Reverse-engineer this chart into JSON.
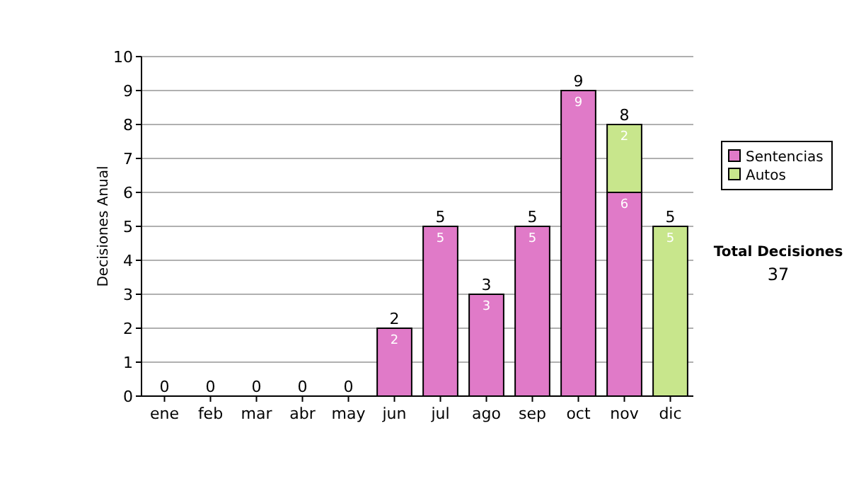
{
  "chart_data": {
    "type": "bar",
    "stacked": true,
    "ylabel": "Decisiones Anual",
    "categories": [
      "ene",
      "feb",
      "mar",
      "abr",
      "may",
      "jun",
      "jul",
      "ago",
      "sep",
      "oct",
      "nov",
      "dic"
    ],
    "series": [
      {
        "name": "Sentencias",
        "color": "#e07ac8",
        "values": [
          0,
          0,
          0,
          0,
          0,
          2,
          5,
          3,
          5,
          9,
          6,
          0
        ],
        "value_labels": [
          null,
          null,
          null,
          null,
          null,
          "2",
          "5",
          "3",
          "5",
          "9",
          "6",
          null
        ]
      },
      {
        "name": "Autos",
        "color": "#c8e68c",
        "values": [
          0,
          0,
          0,
          0,
          0,
          0,
          0,
          0,
          0,
          0,
          2,
          5
        ],
        "value_labels": [
          null,
          null,
          null,
          null,
          null,
          null,
          null,
          null,
          null,
          null,
          "2",
          "5"
        ]
      }
    ],
    "totals": [
      "0",
      "0",
      "0",
      "0",
      "0",
      "2",
      "5",
      "3",
      "5",
      "9",
      "8",
      "5"
    ],
    "ylim": [
      0,
      10
    ],
    "yticks": [
      0,
      1,
      2,
      3,
      4,
      5,
      6,
      7,
      8,
      9,
      10
    ],
    "grid": "y",
    "legend": "right",
    "annotations": [
      "Total Decisiones",
      "37"
    ]
  }
}
